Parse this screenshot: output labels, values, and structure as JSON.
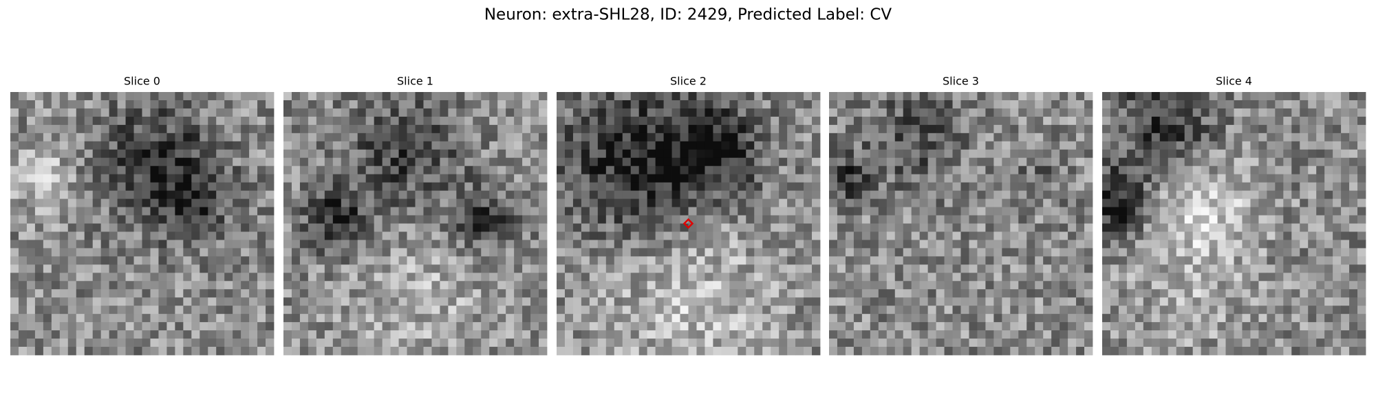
{
  "title": "Neuron: extra-SHL28, ID: 2429, Predicted Label: CV",
  "panels": [
    {
      "title": "Slice 0"
    },
    {
      "title": "Slice 1"
    },
    {
      "title": "Slice 2"
    },
    {
      "title": "Slice 3"
    },
    {
      "title": "Slice 4"
    }
  ]
}
